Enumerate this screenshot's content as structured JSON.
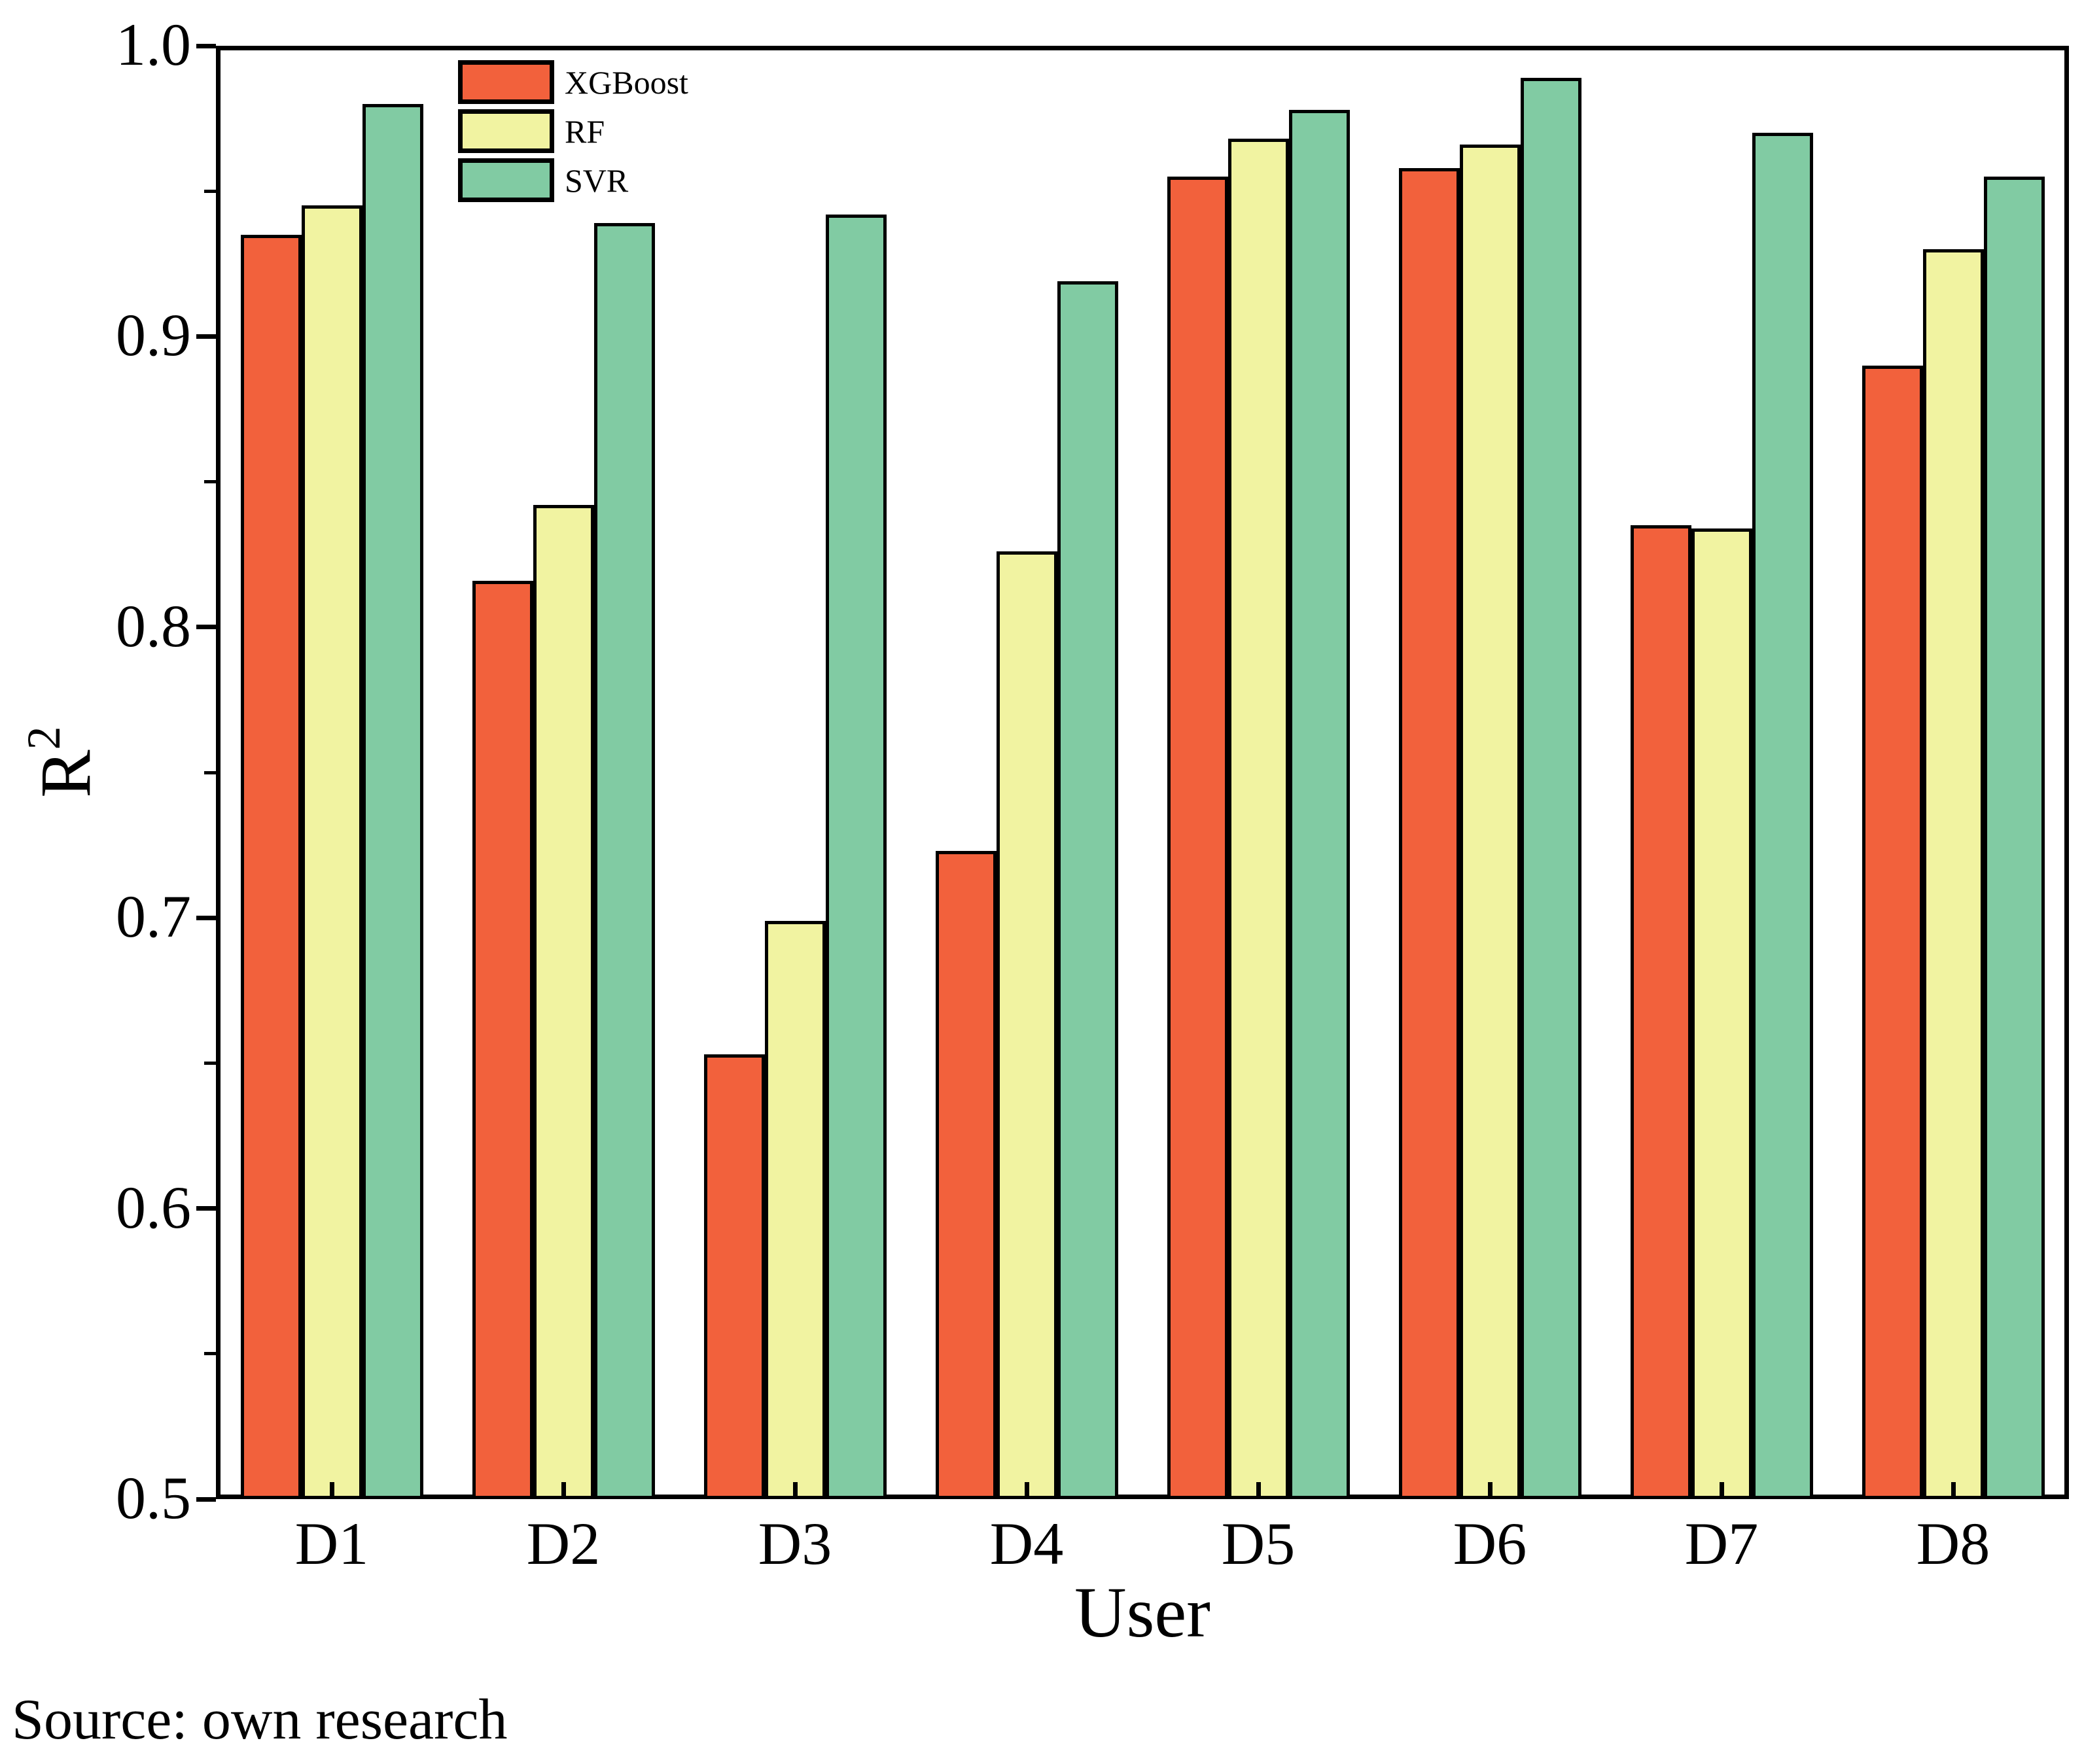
{
  "source_note": "Source: own research",
  "chart_data": {
    "type": "bar",
    "title": "",
    "xlabel": "User",
    "ylabel_base": "R",
    "ylabel_sup": "2",
    "categories": [
      "D1",
      "D2",
      "D3",
      "D4",
      "D5",
      "D6",
      "D7",
      "D8"
    ],
    "series": [
      {
        "name": "XGBoost",
        "color": "#F2613C",
        "values": [
          0.935,
          0.816,
          0.653,
          0.723,
          0.955,
          0.958,
          0.835,
          0.89
        ]
      },
      {
        "name": "RF",
        "color": "#F1F3A1",
        "values": [
          0.945,
          0.842,
          0.699,
          0.826,
          0.968,
          0.966,
          0.834,
          0.93
        ]
      },
      {
        "name": "SVR",
        "color": "#81CBA3",
        "values": [
          0.98,
          0.939,
          0.942,
          0.919,
          0.978,
          0.989,
          0.97,
          0.955
        ]
      }
    ],
    "ylim": [
      0.5,
      1.0
    ],
    "yticks_major": [
      0.5,
      0.6,
      0.7,
      0.8,
      0.9,
      1.0
    ],
    "ytick_labels": [
      "0.5",
      "0.6",
      "0.7",
      "0.8",
      "0.9",
      "1.0"
    ],
    "yticks_minor": [
      0.55,
      0.65,
      0.75,
      0.85,
      0.95
    ],
    "bar_edge_color": "#000000",
    "legend_position": "upper-left-inside",
    "grid": false
  }
}
